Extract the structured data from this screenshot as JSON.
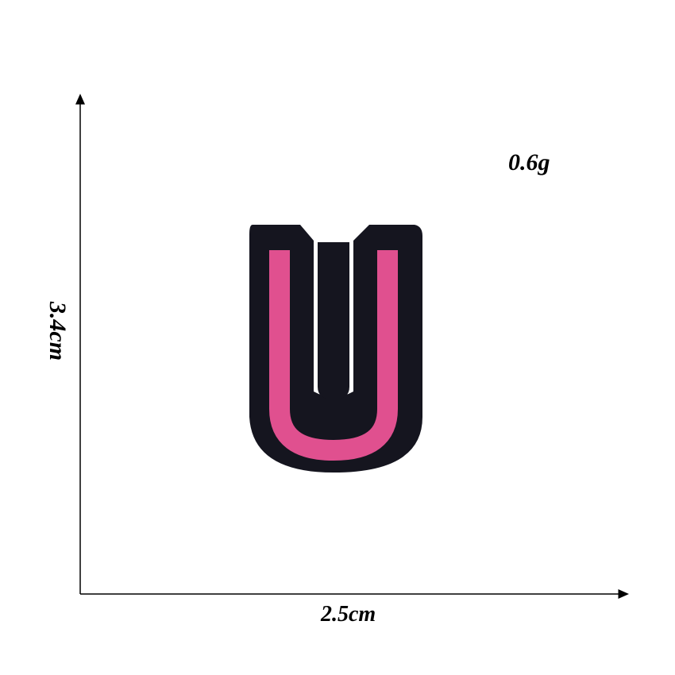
{
  "product": {
    "letter": "U",
    "weight": "0.6g",
    "width": "2.5cm",
    "height": "3.4cm"
  },
  "colors": {
    "background": "#ffffff",
    "patch_border": "#15151f",
    "patch_fill": "#e0508f",
    "axis": "#000000"
  }
}
